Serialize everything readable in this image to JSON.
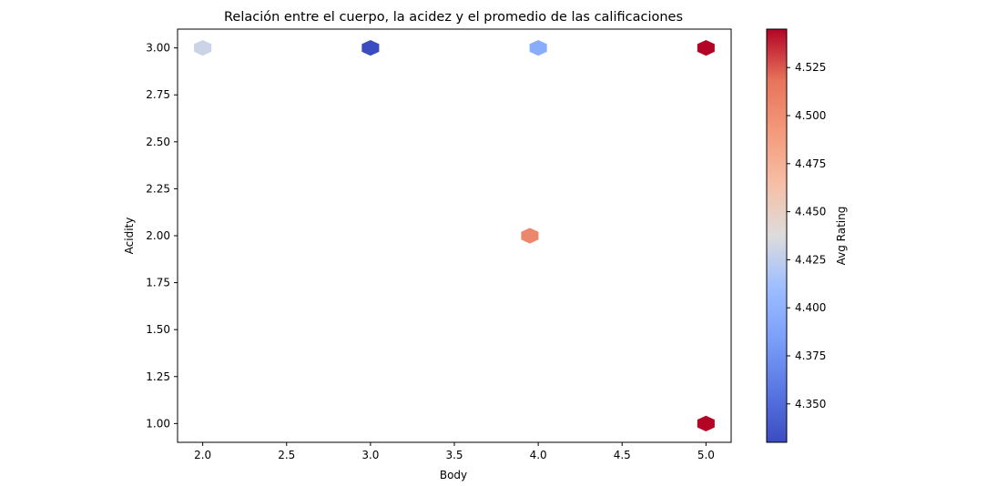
{
  "chart_data": {
    "type": "hexbin",
    "title": "Relación entre el cuerpo, la acidez y el promedio de las calificaciones",
    "xlabel": "Body",
    "ylabel": "Acidity",
    "xlim": [
      1.85,
      5.15
    ],
    "ylim": [
      0.9,
      3.1
    ],
    "x_ticks": [
      2.0,
      2.5,
      3.0,
      3.5,
      4.0,
      4.5,
      5.0
    ],
    "x_tick_labels": [
      "2.0",
      "2.5",
      "3.0",
      "3.5",
      "4.0",
      "4.5",
      "5.0"
    ],
    "y_ticks": [
      1.0,
      1.25,
      1.5,
      1.75,
      2.0,
      2.25,
      2.5,
      2.75,
      3.0
    ],
    "y_tick_labels": [
      "1.00",
      "1.25",
      "1.50",
      "1.75",
      "2.00",
      "2.25",
      "2.50",
      "2.75",
      "3.00"
    ],
    "colormap": "coolwarm",
    "colorbar": {
      "label": "Avg Rating",
      "vmin": 4.33,
      "vmax": 4.545,
      "ticks": [
        4.35,
        4.375,
        4.4,
        4.425,
        4.45,
        4.475,
        4.5,
        4.525
      ],
      "tick_labels": [
        "4.350",
        "4.375",
        "4.400",
        "4.425",
        "4.450",
        "4.475",
        "4.500",
        "4.525"
      ]
    },
    "points": [
      {
        "x": 2.0,
        "y": 3.0,
        "value": 4.43
      },
      {
        "x": 3.0,
        "y": 3.0,
        "value": 4.33
      },
      {
        "x": 4.0,
        "y": 3.0,
        "value": 4.395
      },
      {
        "x": 5.0,
        "y": 3.0,
        "value": 4.545
      },
      {
        "x": 3.95,
        "y": 2.0,
        "value": 4.505
      },
      {
        "x": 5.0,
        "y": 1.0,
        "value": 4.545
      }
    ],
    "grid": false,
    "legend": "colorbar-right"
  }
}
